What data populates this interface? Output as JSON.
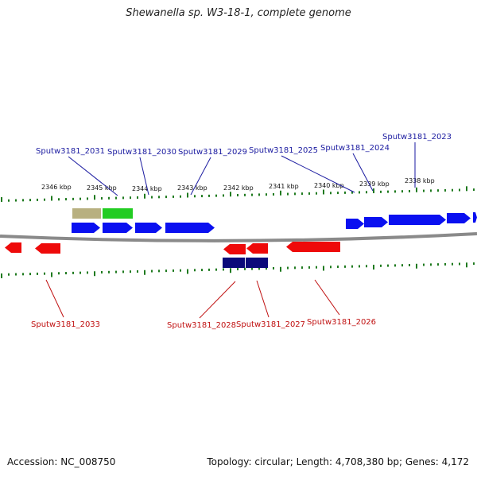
{
  "title": "Shewanella sp. W3-18-1, complete genome",
  "footer": {
    "accession": "Accession: NC_008750",
    "summary": "Topology: circular; Length: 4,708,380 bp; Genes: 4,172"
  },
  "colors": {
    "backbone": "#8a8a8a",
    "tick": "#1f7a1f",
    "forward_gene": "#0a10f0",
    "reverse_gene": "#ee0a0a",
    "navy_feature": "#0b0b7a",
    "olive_feature": "#b8b080",
    "green_feature": "#22cc22",
    "forward_label": "#1a1aa0",
    "reverse_label": "#c01010"
  },
  "scale_labels": [
    "2346 kbp",
    "2345 kbp",
    "2344 kbp",
    "2343 kbp",
    "2342 kbp",
    "2341 kbp",
    "2340 kbp",
    "2339 kbp",
    "2338 kbp"
  ],
  "forward_gene_labels": [
    "Sputw3181_2031",
    "Sputw3181_2030",
    "Sputw3181_2029",
    "Sputw3181_2025",
    "Sputw3181_2024",
    "Sputw3181_2023"
  ],
  "reverse_gene_labels": [
    "Sputw3181_2033",
    "Sputw3181_2028",
    "Sputw3181_2027",
    "Sputw3181_2026"
  ]
}
